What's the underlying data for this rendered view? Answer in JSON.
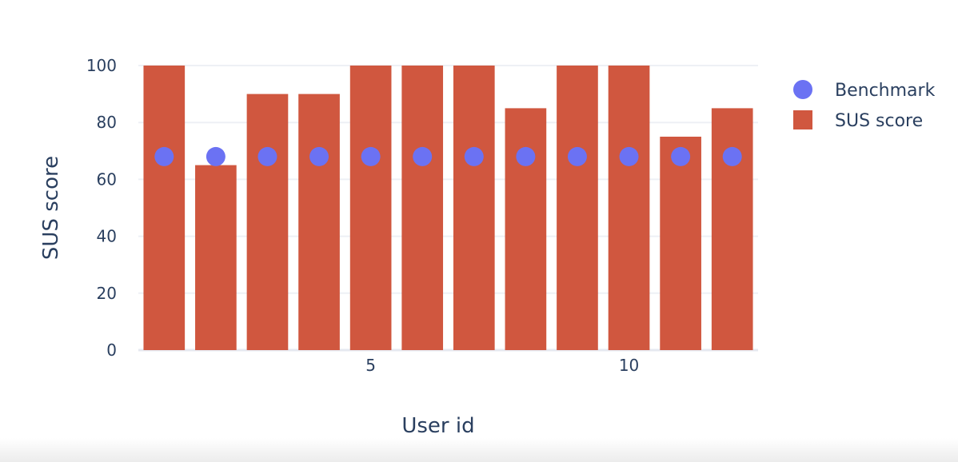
{
  "chart_data": {
    "type": "bar",
    "x": [
      1,
      2,
      3,
      4,
      5,
      6,
      7,
      8,
      9,
      10,
      11,
      12
    ],
    "x_ticks": [
      5,
      10
    ],
    "xlabel": "User id",
    "ylabel": "SUS score",
    "ylim": [
      0,
      100
    ],
    "y_ticks": [
      0,
      20,
      40,
      60,
      80,
      100
    ],
    "grid": true,
    "legend_position": "top-right",
    "series": [
      {
        "name": "SUS score",
        "type": "bar",
        "color": "#d0573f",
        "values": [
          100,
          65,
          90,
          90,
          100,
          100,
          100,
          85,
          100,
          100,
          75,
          85
        ]
      },
      {
        "name": "Benchmark",
        "type": "scatter",
        "color": "#6b72f3",
        "values": [
          68,
          68,
          68,
          68,
          68,
          68,
          68,
          68,
          68,
          68,
          68,
          68
        ]
      }
    ]
  }
}
